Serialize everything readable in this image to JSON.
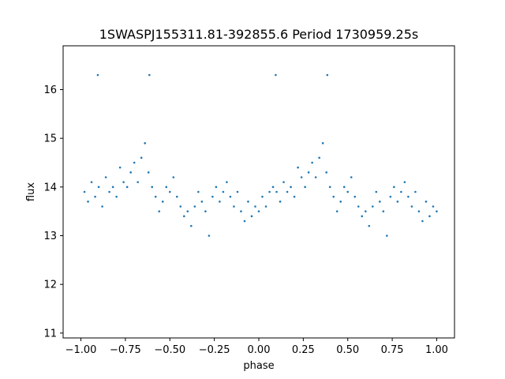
{
  "chart_data": {
    "type": "scatter",
    "title": "1SWASPJ155311.81-392855.6 Period 1730959.25s",
    "xlabel": "phase",
    "ylabel": "flux",
    "xlim": [
      -1.1,
      1.1
    ],
    "ylim": [
      10.9,
      16.9
    ],
    "xticks": [
      -1.0,
      -0.75,
      -0.5,
      -0.25,
      0.0,
      0.25,
      0.5,
      0.75,
      1.0
    ],
    "xtick_labels": [
      "−1.00",
      "−0.75",
      "−0.50",
      "−0.25",
      "0.00",
      "0.25",
      "0.50",
      "0.75",
      "1.00"
    ],
    "yticks": [
      11,
      12,
      13,
      14,
      15,
      16
    ],
    "ytick_labels": [
      "11",
      "12",
      "13",
      "14",
      "15",
      "16"
    ],
    "grid": false,
    "marker_color": "#1f77b4",
    "series": [
      {
        "points": [
          [
            -0.98,
            13.9
          ],
          [
            -0.96,
            13.7
          ],
          [
            -0.94,
            14.1
          ],
          [
            -0.92,
            13.8
          ],
          [
            -0.905,
            16.3
          ],
          [
            -0.9,
            14.0
          ],
          [
            -0.88,
            13.6
          ],
          [
            -0.86,
            14.2
          ],
          [
            -0.84,
            13.9
          ],
          [
            -0.82,
            14.0
          ],
          [
            -0.8,
            13.8
          ],
          [
            -0.78,
            14.4
          ],
          [
            -0.76,
            14.1
          ],
          [
            -0.74,
            14.0
          ],
          [
            -0.72,
            14.3
          ],
          [
            -0.7,
            14.5
          ],
          [
            -0.68,
            14.1
          ],
          [
            -0.66,
            14.6
          ],
          [
            -0.64,
            14.9
          ],
          [
            -0.62,
            14.3
          ],
          [
            -0.615,
            16.3
          ],
          [
            -0.6,
            14.0
          ],
          [
            -0.58,
            13.8
          ],
          [
            -0.56,
            13.5
          ],
          [
            -0.54,
            13.7
          ],
          [
            -0.52,
            14.0
          ],
          [
            -0.5,
            13.9
          ],
          [
            -0.48,
            14.2
          ],
          [
            -0.46,
            13.8
          ],
          [
            -0.44,
            13.6
          ],
          [
            -0.42,
            13.4
          ],
          [
            -0.4,
            13.5
          ],
          [
            -0.38,
            13.2
          ],
          [
            -0.36,
            13.6
          ],
          [
            -0.34,
            13.9
          ],
          [
            -0.32,
            13.7
          ],
          [
            -0.3,
            13.5
          ],
          [
            -0.28,
            13.0
          ],
          [
            -0.26,
            13.8
          ],
          [
            -0.24,
            14.0
          ],
          [
            -0.22,
            13.7
          ],
          [
            -0.2,
            13.9
          ],
          [
            -0.18,
            14.1
          ],
          [
            -0.16,
            13.8
          ],
          [
            -0.14,
            13.6
          ],
          [
            -0.12,
            13.9
          ],
          [
            -0.1,
            13.5
          ],
          [
            -0.08,
            13.3
          ],
          [
            -0.06,
            13.7
          ],
          [
            -0.04,
            13.4
          ],
          [
            -0.02,
            13.6
          ],
          [
            0.0,
            13.5
          ],
          [
            0.02,
            13.8
          ],
          [
            0.04,
            13.6
          ],
          [
            0.06,
            13.9
          ],
          [
            0.08,
            14.0
          ],
          [
            0.095,
            16.3
          ],
          [
            0.1,
            13.9
          ],
          [
            0.12,
            13.7
          ],
          [
            0.14,
            14.1
          ],
          [
            0.16,
            13.9
          ],
          [
            0.18,
            14.0
          ],
          [
            0.2,
            13.8
          ],
          [
            0.22,
            14.4
          ],
          [
            0.24,
            14.2
          ],
          [
            0.26,
            14.0
          ],
          [
            0.28,
            14.3
          ],
          [
            0.3,
            14.5
          ],
          [
            0.32,
            14.2
          ],
          [
            0.34,
            14.6
          ],
          [
            0.36,
            14.9
          ],
          [
            0.38,
            14.3
          ],
          [
            0.385,
            16.3
          ],
          [
            0.4,
            14.0
          ],
          [
            0.42,
            13.8
          ],
          [
            0.44,
            13.5
          ],
          [
            0.46,
            13.7
          ],
          [
            0.48,
            14.0
          ],
          [
            0.5,
            13.9
          ],
          [
            0.52,
            14.2
          ],
          [
            0.54,
            13.8
          ],
          [
            0.56,
            13.6
          ],
          [
            0.58,
            13.4
          ],
          [
            0.6,
            13.5
          ],
          [
            0.62,
            13.2
          ],
          [
            0.64,
            13.6
          ],
          [
            0.66,
            13.9
          ],
          [
            0.68,
            13.7
          ],
          [
            0.7,
            13.5
          ],
          [
            0.72,
            13.0
          ],
          [
            0.74,
            13.8
          ],
          [
            0.76,
            14.0
          ],
          [
            0.78,
            13.7
          ],
          [
            0.8,
            13.9
          ],
          [
            0.82,
            14.1
          ],
          [
            0.84,
            13.8
          ],
          [
            0.86,
            13.6
          ],
          [
            0.88,
            13.9
          ],
          [
            0.9,
            13.5
          ],
          [
            0.92,
            13.3
          ],
          [
            0.94,
            13.7
          ],
          [
            0.96,
            13.4
          ],
          [
            0.98,
            13.6
          ],
          [
            1.0,
            13.5
          ]
        ]
      }
    ]
  }
}
